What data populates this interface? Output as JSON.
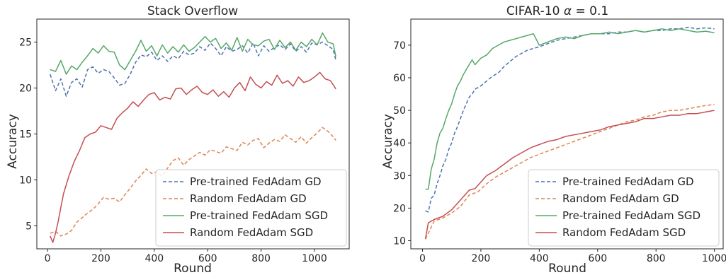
{
  "chart_data": [
    {
      "type": "line",
      "title": "Stack Overflow",
      "xlabel": "Round",
      "ylabel": "Accuracy",
      "xlim": [
        -40,
        1130
      ],
      "ylim": [
        2.5,
        27.5
      ],
      "xticks": [
        0,
        200,
        400,
        600,
        800,
        1000
      ],
      "xtick_labels": [
        "0",
        "200",
        "400",
        "600",
        "800",
        "1000"
      ],
      "yticks": [
        5,
        10,
        15,
        20,
        25
      ],
      "ytick_labels": [
        "5",
        "10",
        "15",
        "20",
        "25"
      ],
      "grid": false,
      "legend_position": "lower-right",
      "series": [
        {
          "name": "Pre-trained FedAdam GD",
          "color": "#4c72b0",
          "dash": "dashed",
          "x": [
            10,
            30,
            50,
            70,
            90,
            110,
            130,
            150,
            170,
            190,
            210,
            230,
            250,
            270,
            290,
            310,
            330,
            350,
            370,
            390,
            410,
            430,
            450,
            470,
            490,
            510,
            530,
            550,
            570,
            590,
            610,
            630,
            650,
            670,
            690,
            710,
            730,
            750,
            770,
            790,
            810,
            830,
            850,
            870,
            890,
            910,
            930,
            950,
            970,
            990,
            1010,
            1030,
            1050,
            1070,
            1080
          ],
          "y": [
            21.5,
            19.7,
            21.0,
            19.1,
            20.6,
            21.0,
            20.1,
            22.0,
            22.3,
            21.6,
            22.0,
            21.8,
            21.1,
            20.3,
            20.5,
            21.5,
            22.8,
            23.6,
            23.4,
            23.9,
            23.0,
            23.5,
            22.9,
            23.5,
            23.2,
            24.0,
            23.6,
            23.8,
            24.5,
            24.1,
            24.9,
            24.3,
            23.5,
            24.5,
            24.0,
            24.2,
            24.6,
            23.8,
            24.9,
            23.5,
            24.6,
            24.0,
            24.4,
            24.7,
            24.2,
            24.8,
            24.0,
            24.5,
            23.9,
            24.9,
            24.7,
            25.0,
            24.6,
            24.2,
            23.0
          ]
        },
        {
          "name": "Random FedAdam GD",
          "color": "#dd8452",
          "dash": "dashed",
          "x": [
            10,
            30,
            50,
            70,
            90,
            110,
            130,
            150,
            170,
            190,
            210,
            230,
            250,
            270,
            290,
            310,
            330,
            350,
            370,
            390,
            410,
            430,
            450,
            470,
            490,
            510,
            530,
            550,
            570,
            590,
            610,
            630,
            650,
            670,
            690,
            710,
            730,
            750,
            770,
            790,
            810,
            830,
            850,
            870,
            890,
            910,
            930,
            950,
            970,
            990,
            1010,
            1030,
            1050,
            1070,
            1080
          ],
          "y": [
            4.2,
            4.4,
            3.9,
            4.1,
            4.5,
            5.4,
            5.9,
            6.4,
            6.8,
            7.4,
            8.1,
            7.9,
            8.0,
            7.6,
            8.4,
            9.1,
            9.9,
            10.5,
            11.2,
            10.7,
            10.9,
            10.4,
            11.3,
            12.1,
            12.4,
            11.6,
            12.2,
            12.6,
            13.0,
            12.7,
            13.3,
            13.1,
            12.9,
            13.6,
            13.4,
            13.2,
            14.1,
            13.8,
            14.3,
            14.5,
            13.5,
            14.0,
            14.4,
            14.2,
            14.9,
            14.5,
            14.1,
            14.7,
            14.0,
            14.6,
            15.1,
            15.7,
            15.3,
            14.7,
            14.3
          ]
        },
        {
          "name": "Pre-trained FedAdam SGD",
          "color": "#55a868",
          "dash": "solid",
          "x": [
            10,
            30,
            50,
            70,
            90,
            110,
            130,
            150,
            170,
            190,
            210,
            230,
            250,
            270,
            290,
            310,
            330,
            350,
            370,
            390,
            410,
            430,
            450,
            470,
            490,
            510,
            530,
            550,
            570,
            590,
            610,
            630,
            650,
            670,
            690,
            710,
            730,
            750,
            770,
            790,
            810,
            830,
            850,
            870,
            890,
            910,
            930,
            950,
            970,
            990,
            1010,
            1030,
            1050,
            1070,
            1080
          ],
          "y": [
            22.0,
            21.8,
            23.0,
            21.5,
            22.4,
            22.0,
            22.8,
            23.5,
            24.3,
            23.8,
            24.6,
            24.0,
            23.9,
            22.5,
            22.0,
            23.0,
            24.0,
            25.2,
            24.0,
            24.6,
            23.5,
            24.7,
            23.8,
            24.5,
            23.9,
            24.7,
            24.0,
            24.4,
            25.0,
            25.6,
            25.0,
            25.4,
            24.3,
            24.9,
            24.1,
            25.5,
            24.0,
            25.3,
            24.7,
            24.6,
            25.1,
            25.3,
            24.2,
            25.2,
            24.4,
            25.0,
            24.1,
            25.0,
            24.5,
            25.3,
            24.7,
            26.0,
            25.0,
            24.8,
            23.4
          ]
        },
        {
          "name": "Random FedAdam SGD",
          "color": "#c44e52",
          "dash": "solid",
          "x": [
            10,
            20,
            30,
            40,
            50,
            60,
            80,
            100,
            120,
            140,
            160,
            180,
            200,
            220,
            240,
            260,
            280,
            300,
            320,
            340,
            360,
            380,
            400,
            420,
            440,
            460,
            480,
            500,
            520,
            540,
            560,
            580,
            600,
            620,
            640,
            660,
            680,
            700,
            720,
            740,
            760,
            780,
            800,
            820,
            840,
            860,
            880,
            900,
            920,
            940,
            960,
            980,
            1000,
            1020,
            1040,
            1060,
            1080
          ],
          "y": [
            3.9,
            3.2,
            4.2,
            5.5,
            7.0,
            8.5,
            10.4,
            12.0,
            13.2,
            14.6,
            15.0,
            15.2,
            15.9,
            15.7,
            15.5,
            16.7,
            17.3,
            17.8,
            18.5,
            18.0,
            18.7,
            19.3,
            19.5,
            18.7,
            19.0,
            18.8,
            19.9,
            20.0,
            19.3,
            19.8,
            20.2,
            19.5,
            19.3,
            19.8,
            19.1,
            19.6,
            19.0,
            20.0,
            20.6,
            19.7,
            21.2,
            20.4,
            20.0,
            20.7,
            20.3,
            21.4,
            20.5,
            20.8,
            20.2,
            21.2,
            20.6,
            20.8,
            21.2,
            21.7,
            21.0,
            20.8,
            19.9
          ]
        }
      ]
    },
    {
      "type": "line",
      "title": "CIFAR-10 α = 0.1",
      "title_prefix": "CIFAR-10 ",
      "title_greek": "α",
      "title_suffix": " = 0.1",
      "xlabel": "Round",
      "ylabel": "Accuracy",
      "xlim": [
        -40,
        1030
      ],
      "ylim": [
        7.5,
        78
      ],
      "xticks": [
        0,
        200,
        400,
        600,
        800,
        1000
      ],
      "xtick_labels": [
        "0",
        "200",
        "400",
        "600",
        "800",
        "1000"
      ],
      "yticks": [
        10,
        20,
        30,
        40,
        50,
        60,
        70
      ],
      "ytick_labels": [
        "10",
        "20",
        "30",
        "40",
        "50",
        "60",
        "70"
      ],
      "grid": false,
      "legend_position": "lower-right",
      "series": [
        {
          "name": "Pre-trained FedAdam GD",
          "color": "#4c72b0",
          "dash": "dashed",
          "x": [
            10,
            20,
            30,
            40,
            50,
            60,
            70,
            80,
            90,
            100,
            110,
            120,
            130,
            140,
            150,
            160,
            170,
            180,
            190,
            200,
            220,
            240,
            260,
            280,
            300,
            320,
            340,
            360,
            380,
            400,
            430,
            460,
            490,
            520,
            550,
            580,
            610,
            640,
            670,
            700,
            730,
            760,
            790,
            820,
            850,
            880,
            910,
            940,
            970,
            1000
          ],
          "y": [
            19.2,
            18.8,
            23.0,
            24.0,
            27.5,
            30.0,
            33.0,
            35.0,
            38.0,
            40.0,
            43.0,
            45.0,
            47.5,
            50.0,
            52.0,
            54.0,
            55.0,
            56.5,
            57.0,
            57.5,
            59.0,
            60.5,
            61.5,
            63.5,
            65.0,
            66.5,
            67.5,
            68.5,
            69.0,
            69.5,
            70.5,
            71.5,
            72.0,
            72.5,
            73.0,
            73.5,
            73.5,
            73.5,
            74.0,
            74.0,
            74.5,
            74.0,
            74.5,
            74.5,
            75.0,
            75.0,
            75.5,
            75.0,
            75.3,
            75.0
          ]
        },
        {
          "name": "Random FedAdam GD",
          "color": "#dd8452",
          "dash": "dashed",
          "x": [
            10,
            40,
            70,
            100,
            130,
            160,
            190,
            220,
            250,
            280,
            310,
            340,
            370,
            400,
            430,
            460,
            490,
            520,
            550,
            580,
            610,
            640,
            670,
            700,
            730,
            760,
            790,
            820,
            850,
            880,
            910,
            940,
            970,
            1000
          ],
          "y": [
            10.5,
            16.0,
            17.0,
            18.5,
            20.5,
            24.0,
            25.0,
            27.5,
            29.5,
            31.0,
            32.5,
            34.0,
            35.5,
            36.5,
            37.5,
            38.5,
            39.5,
            40.5,
            41.5,
            42.5,
            43.5,
            44.5,
            45.5,
            46.5,
            47.0,
            48.0,
            48.5,
            49.5,
            50.0,
            50.0,
            50.5,
            51.0,
            51.5,
            51.8
          ]
        },
        {
          "name": "Pre-trained FedAdam SGD",
          "color": "#55a868",
          "dash": "solid",
          "x": [
            10,
            20,
            30,
            40,
            50,
            60,
            70,
            80,
            90,
            100,
            110,
            120,
            130,
            140,
            150,
            160,
            170,
            180,
            190,
            200,
            220,
            240,
            260,
            280,
            300,
            320,
            340,
            360,
            380,
            400,
            430,
            460,
            490,
            520,
            550,
            580,
            610,
            640,
            670,
            700,
            730,
            760,
            790,
            820,
            850,
            880,
            910,
            940,
            970,
            1000
          ],
          "y": [
            25.8,
            25.8,
            32.0,
            35.0,
            40.0,
            43.0,
            44.5,
            47.5,
            50.0,
            52.0,
            55.0,
            57.5,
            59.0,
            61.0,
            62.5,
            64.0,
            65.5,
            64.0,
            65.0,
            66.0,
            67.0,
            69.0,
            70.0,
            71.0,
            71.5,
            72.0,
            72.5,
            73.0,
            73.5,
            70.0,
            71.0,
            72.0,
            72.5,
            72.0,
            73.0,
            73.5,
            73.5,
            74.0,
            73.5,
            74.0,
            74.5,
            74.0,
            74.5,
            75.0,
            74.5,
            75.0,
            74.5,
            74.0,
            74.3,
            73.8
          ]
        },
        {
          "name": "Random FedAdam SGD",
          "color": "#c44e52",
          "dash": "solid",
          "x": [
            10,
            20,
            40,
            70,
            100,
            130,
            160,
            180,
            200,
            220,
            250,
            280,
            310,
            340,
            370,
            400,
            430,
            460,
            490,
            520,
            550,
            580,
            610,
            640,
            670,
            700,
            730,
            760,
            790,
            820,
            850,
            880,
            910,
            940,
            970,
            1000
          ],
          "y": [
            10.5,
            15.5,
            16.5,
            17.5,
            19.5,
            22.5,
            25.5,
            26.0,
            28.0,
            30.0,
            31.5,
            33.5,
            35.5,
            37.0,
            38.5,
            39.5,
            40.5,
            41.0,
            42.0,
            42.5,
            43.0,
            43.5,
            44.0,
            45.0,
            45.5,
            46.0,
            46.5,
            47.5,
            47.5,
            48.0,
            48.5,
            48.5,
            49.0,
            49.0,
            49.5,
            50.0
          ]
        }
      ]
    }
  ]
}
